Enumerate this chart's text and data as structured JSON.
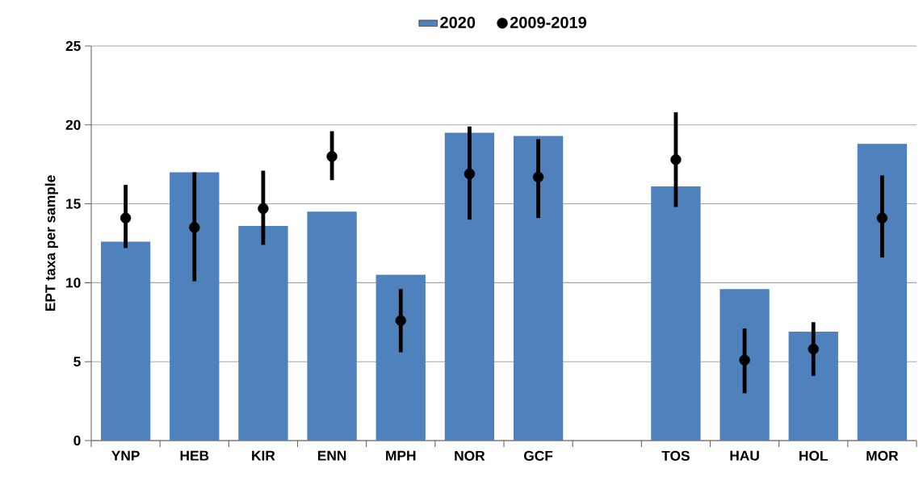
{
  "chart_data": {
    "type": "bar",
    "ylabel": "EPT taxa per sample",
    "categories": [
      "YNP",
      "HEB",
      "KIR",
      "ENN",
      "MPH",
      "NOR",
      "GCF",
      null,
      "TOS",
      "HAU",
      "HOL",
      "MOR"
    ],
    "series": [
      {
        "name": "2020",
        "color": "#4f81bd",
        "values": [
          12.6,
          17.0,
          13.6,
          14.5,
          10.5,
          19.5,
          19.3,
          null,
          16.1,
          9.6,
          6.9,
          18.8
        ]
      },
      {
        "name": "2009-2019",
        "type": "scatter",
        "color": "#000000",
        "marker": "circle",
        "values": [
          14.1,
          13.5,
          14.7,
          18.0,
          7.6,
          16.9,
          16.7,
          null,
          17.8,
          5.1,
          5.8,
          14.1
        ],
        "errors": [
          [
            12.2,
            16.2
          ],
          [
            10.1,
            17.0
          ],
          [
            12.4,
            17.1
          ],
          [
            16.5,
            19.6
          ],
          [
            5.6,
            9.6
          ],
          [
            14.0,
            19.9
          ],
          [
            14.1,
            19.1
          ],
          null,
          [
            14.8,
            20.8
          ],
          [
            3.0,
            7.1
          ],
          [
            4.1,
            7.5
          ],
          [
            11.6,
            16.8
          ]
        ]
      }
    ],
    "ylim": [
      0,
      25
    ],
    "yticks": [
      0,
      5,
      10,
      15,
      20,
      25
    ],
    "grid": "y",
    "legend": "top"
  }
}
